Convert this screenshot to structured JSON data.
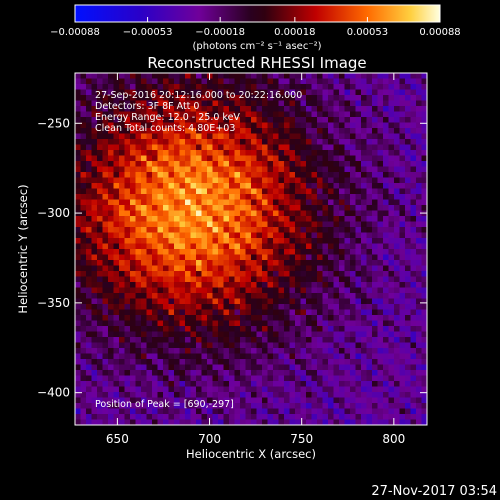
{
  "chart_data": {
    "type": "heatmap",
    "title": "Reconstructed RHESSI Image",
    "xlabel": "Heliocentric X (arcsec)",
    "ylabel": "Heliocentric Y (arcsec)",
    "xlim": [
      627,
      818
    ],
    "ylim": [
      -418,
      -222
    ],
    "x_ticks": [
      650,
      700,
      750,
      800
    ],
    "y_ticks": [
      -250,
      -300,
      -350,
      -400
    ],
    "colorbar": {
      "ticks": [
        "-0.00088",
        "-0.00053",
        "-0.00018",
        "0.00018",
        "0.00053",
        "0.00088"
      ],
      "range": [
        -0.00088,
        0.00088
      ],
      "unit": "(photons cm⁻² s⁻¹ asec⁻²)"
    },
    "info_lines": [
      "27-Sep-2016 20:12:16.000 to 20:22:16.000",
      "Detectors: 3F 8F  Att 0",
      "Energy Range: 12.0 - 25.0 keV",
      "Clean    Total counts: 4.80E+03"
    ],
    "peak_label": "Position of Peak = [690,-297]",
    "peak": {
      "x": 690,
      "y": -297
    },
    "grid": false
  },
  "timestamp": "27-Nov-2017 03:54"
}
